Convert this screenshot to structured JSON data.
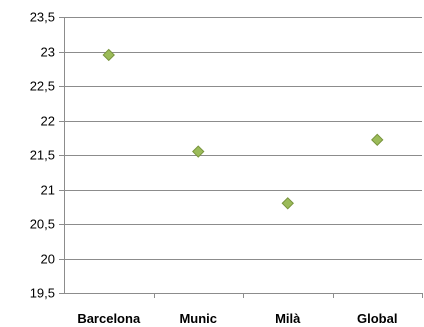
{
  "chart_data": {
    "type": "scatter",
    "categories": [
      "Barcelona",
      "Munic",
      "Milà",
      "Global"
    ],
    "values": [
      22.95,
      21.55,
      20.8,
      21.72
    ],
    "y_ticks": [
      "19,5",
      "20",
      "20,5",
      "21",
      "21,5",
      "22",
      "22,5",
      "23",
      "23,5"
    ],
    "ylim": [
      19.5,
      23.5
    ],
    "title": "",
    "xlabel": "",
    "ylabel": "",
    "grid": true,
    "legend": "none",
    "colors": {
      "marker_fill": "#9bbb59",
      "marker_stroke": "#77933c",
      "gridline": "#8c8c8c",
      "axis": "#8c8c8c"
    }
  }
}
